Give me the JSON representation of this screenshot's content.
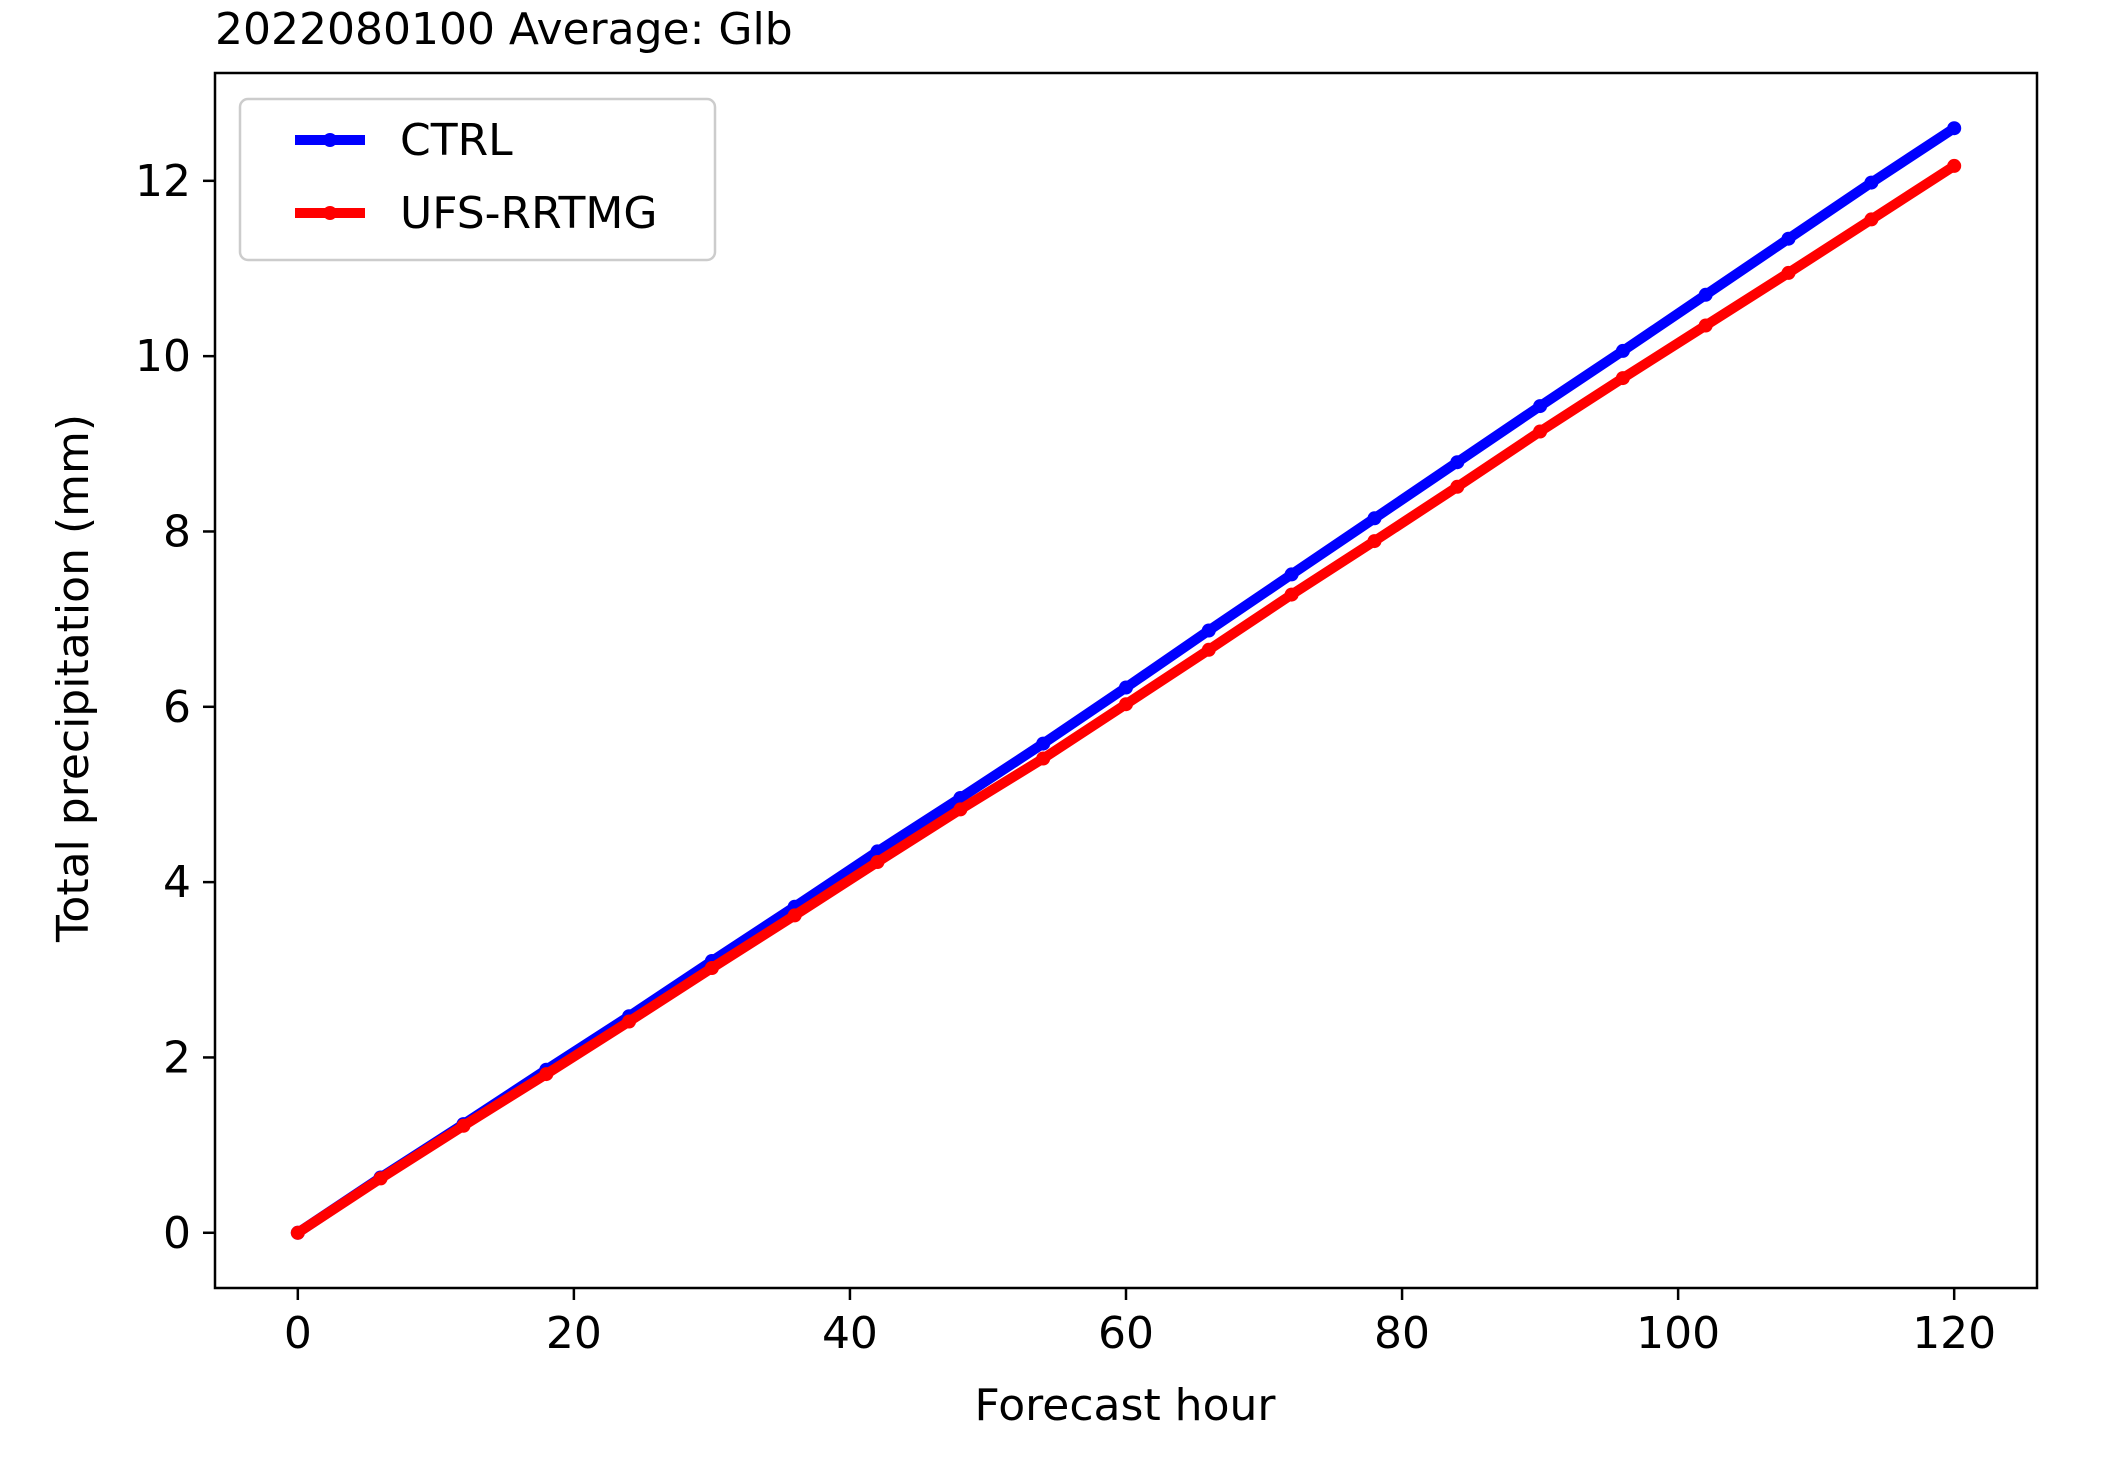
{
  "chart_data": {
    "type": "line",
    "title": "2022080100 Average: Glb",
    "xlabel": "Forecast hour",
    "ylabel": "Total precipitation (mm)",
    "xlim": [
      -6,
      126
    ],
    "ylim": [
      -0.63,
      13.23
    ],
    "xticks": [
      0,
      20,
      40,
      60,
      80,
      100,
      120
    ],
    "yticks": [
      0,
      2,
      4,
      6,
      8,
      10,
      12
    ],
    "grid": false,
    "legend_position": "upper-left",
    "x": [
      0,
      6,
      12,
      18,
      24,
      30,
      36,
      42,
      48,
      54,
      60,
      66,
      72,
      78,
      84,
      90,
      96,
      102,
      108,
      114,
      120
    ],
    "series": [
      {
        "name": "CTRL",
        "color": "#0000ff",
        "values": [
          0.0,
          0.63,
          1.24,
          1.86,
          2.47,
          3.1,
          3.72,
          4.35,
          4.96,
          5.58,
          6.22,
          6.87,
          7.51,
          8.15,
          8.79,
          9.43,
          10.06,
          10.7,
          11.34,
          11.98,
          12.6
        ]
      },
      {
        "name": "UFS-RRTMG",
        "color": "#ff0000",
        "values": [
          0.0,
          0.62,
          1.22,
          1.81,
          2.41,
          3.02,
          3.62,
          4.23,
          4.83,
          5.41,
          6.03,
          6.65,
          7.28,
          7.89,
          8.51,
          9.14,
          9.75,
          10.35,
          10.95,
          11.56,
          12.17
        ]
      }
    ]
  }
}
